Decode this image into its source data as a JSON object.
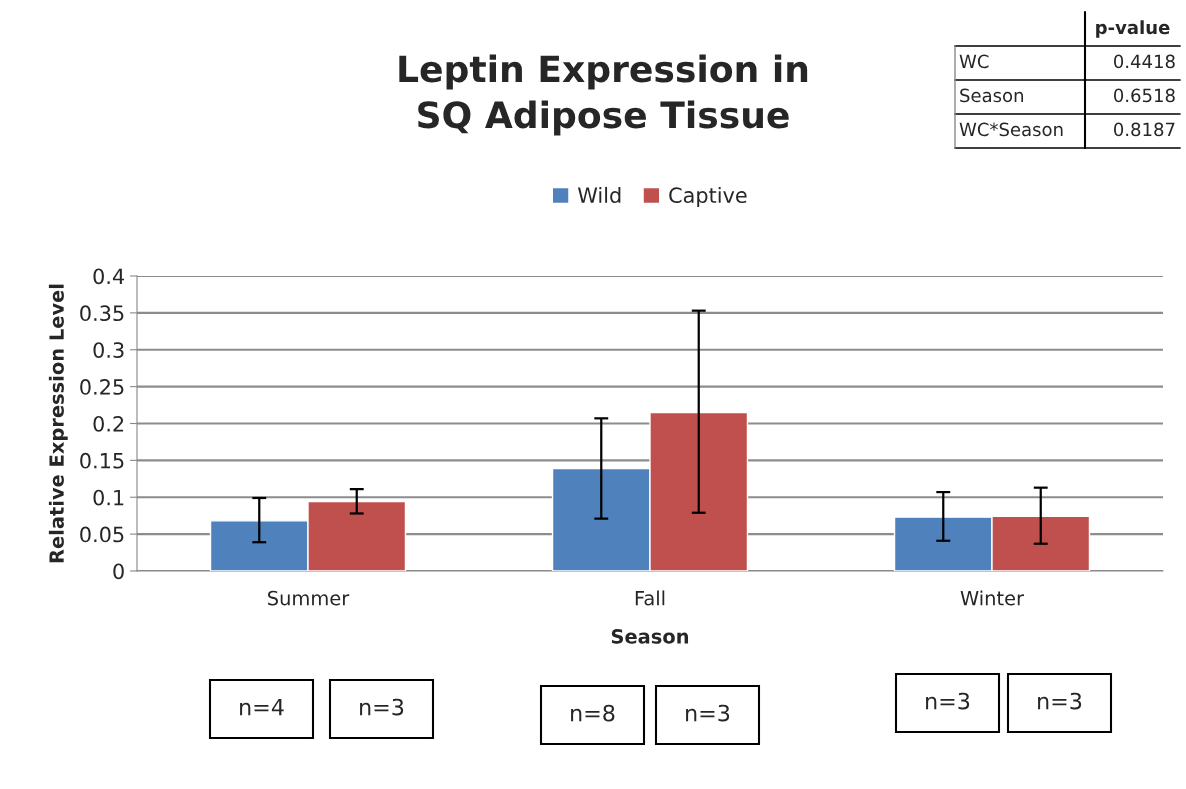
{
  "chart_data": {
    "type": "bar",
    "title": "Leptin Expression in\nSQ Adipose Tissue",
    "xlabel": "Season",
    "ylabel": "Relative Expression Level",
    "categories": [
      "Summer",
      "Fall",
      "Winter"
    ],
    "series": [
      {
        "name": "Wild",
        "color": "#4f81bd",
        "values": [
          0.068,
          0.139,
          0.073
        ],
        "errors": [
          [
            0.039,
            0.099
          ],
          [
            0.071,
            0.207
          ],
          [
            0.041,
            0.107
          ]
        ]
      },
      {
        "name": "Captive",
        "color": "#c0504d",
        "values": [
          0.094,
          0.215,
          0.074
        ],
        "errors": [
          [
            0.078,
            0.111
          ],
          [
            0.079,
            0.353
          ],
          [
            0.037,
            0.113
          ]
        ]
      }
    ],
    "ylim": [
      0,
      0.4
    ],
    "yticks": [
      0,
      0.05,
      0.1,
      0.15,
      0.2,
      0.25,
      0.3,
      0.35,
      0.4
    ],
    "grid": "y",
    "legend": "top",
    "annotations": [
      "p-value",
      "WC",
      "0.4418",
      "Season",
      "0.6518",
      "WC*Season",
      "0.8187",
      "n=4",
      "n=3",
      "n=8",
      "n=3",
      "n=3",
      "n=3"
    ]
  }
}
